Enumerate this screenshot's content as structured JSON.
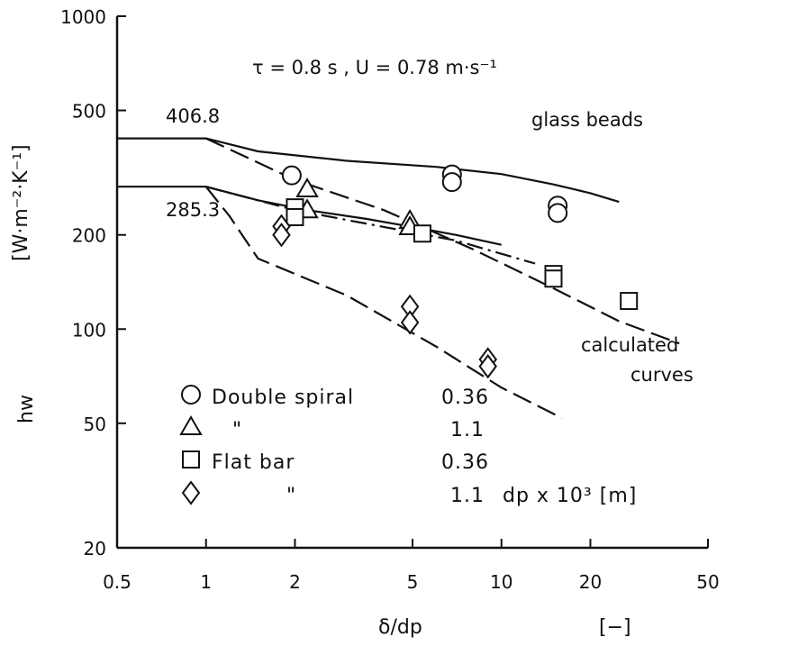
{
  "chart_data": {
    "type": "scatter",
    "x_scale": "log",
    "y_scale": "log",
    "xlim": [
      0.5,
      50
    ],
    "ylim": [
      20,
      1000
    ],
    "x_ticks": [
      "0.5",
      "1",
      "2",
      "5",
      "10",
      "20",
      "50"
    ],
    "y_ticks": [
      "20",
      "50",
      "100",
      "200",
      "500",
      "1000"
    ],
    "xlabel": "δ/dp",
    "xunit": "[−]",
    "ylabel": "hw",
    "yunit": "[W·m⁻²·K⁻¹]",
    "conditions": "τ = 0.8 s ,  U = 0.78 m·s⁻¹",
    "material": "glass beads",
    "curve_label": [
      "calculated",
      "curves"
    ],
    "level_labels": [
      "406.8",
      "285.3"
    ],
    "legend": {
      "rows": [
        {
          "symbol": "circle",
          "name": "Double spiral",
          "value": "0.36"
        },
        {
          "symbol": "triangle",
          "name": "\"",
          "value": "1.1"
        },
        {
          "symbol": "square",
          "name": "Flat bar",
          "value": "0.36"
        },
        {
          "symbol": "diamond",
          "name": "\"",
          "value": "1.1"
        }
      ],
      "value_header": "dp x 10³ [m]"
    },
    "series": [
      {
        "symbol": "circle",
        "points": [
          [
            1.95,
            310
          ],
          [
            6.8,
            312
          ],
          [
            6.8,
            295
          ],
          [
            15.5,
            248
          ],
          [
            15.5,
            235
          ]
        ]
      },
      {
        "symbol": "triangle",
        "points": [
          [
            2.2,
            280
          ],
          [
            2.2,
            240
          ],
          [
            4.9,
            222
          ],
          [
            4.9,
            212
          ]
        ]
      },
      {
        "symbol": "square",
        "points": [
          [
            2.0,
            245
          ],
          [
            2.0,
            228
          ],
          [
            5.4,
            202
          ],
          [
            15.0,
            150
          ],
          [
            15.0,
            145
          ],
          [
            27.0,
            123
          ]
        ]
      },
      {
        "symbol": "diamond",
        "points": [
          [
            1.8,
            213
          ],
          [
            1.8,
            200
          ],
          [
            4.9,
            118
          ],
          [
            4.9,
            105
          ],
          [
            9.0,
            80
          ],
          [
            9.0,
            76
          ]
        ]
      }
    ],
    "curves": [
      {
        "style": "solid",
        "points": [
          [
            0.5,
            406.8
          ],
          [
            1.0,
            406.8
          ],
          [
            1.5,
            370
          ],
          [
            3,
            345
          ],
          [
            6,
            330
          ],
          [
            10,
            313
          ],
          [
            15,
            290
          ],
          [
            20,
            272
          ],
          [
            25,
            255
          ]
        ]
      },
      {
        "style": "longdash",
        "points": [
          [
            1.0,
            406.8
          ],
          [
            2,
            300
          ],
          [
            4,
            240
          ],
          [
            8,
            180
          ],
          [
            15,
            135
          ],
          [
            25,
            106
          ],
          [
            40,
            90
          ]
        ]
      },
      {
        "style": "solid",
        "points": [
          [
            0.5,
            285.3
          ],
          [
            1.0,
            285.3
          ],
          [
            1.5,
            258
          ],
          [
            2.2,
            240
          ],
          [
            3.5,
            225
          ],
          [
            5,
            212
          ],
          [
            7,
            200
          ],
          [
            10,
            186
          ]
        ]
      },
      {
        "style": "dashdot",
        "points": [
          [
            1.0,
            285.3
          ],
          [
            2,
            240
          ],
          [
            4,
            212
          ],
          [
            7,
            192
          ],
          [
            10,
            174
          ],
          [
            13,
            162
          ]
        ]
      },
      {
        "style": "longdash",
        "points": [
          [
            1.0,
            285.3
          ],
          [
            1.2,
            230
          ],
          [
            1.5,
            168
          ],
          [
            3,
            128
          ],
          [
            6,
            88
          ],
          [
            10,
            65
          ],
          [
            16,
            52
          ]
        ]
      }
    ]
  }
}
